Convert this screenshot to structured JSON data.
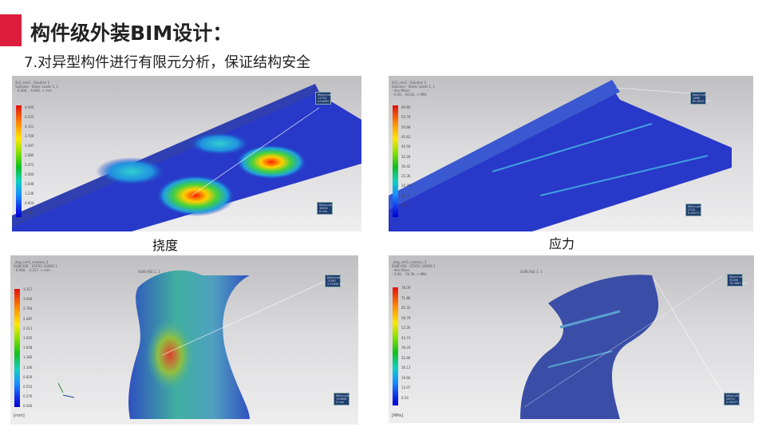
{
  "header": {
    "title": "构件级外装BIM设计：",
    "subtitle": "7.对异型构件进行有限元分析，保证结构安全",
    "accent_color": "#dc1e3c"
  },
  "captions": {
    "deflection": "挠度",
    "stress": "应力"
  },
  "panels": [
    {
      "header": "AL2_sim1 : Solution 1\nSubcase - Static Loads 1, 1\n- 0.000, - 4.945, < mm",
      "legend": [
        "4.945",
        "4.533",
        "4.121",
        "3.709",
        "3.297",
        "2.885",
        "2.472",
        "2.060",
        "1.648",
        "1.236",
        "0.824",
        "0.412"
      ],
      "max_box": "Maximum\n11754\n4.94492 mm",
      "min_box": "Minimum\n16452\n0 mm"
    },
    {
      "header": "AL2_sim1 : Solution 1\nSubcase - Static Loads 1, 1\n- Von Mises\n- 0.00, - 60.82, < MPa",
      "legend": [
        "60.82",
        "55.76",
        "50.68",
        "45.62",
        "40.56",
        "35.49",
        "30.42",
        "25.36",
        "20.29",
        "15.22",
        "10.15"
      ],
      "max_box": "Maximum\n1666\n60.8229 MPa",
      "min_box": "Minimum\n2745\n0.00271 MPa"
    },
    {
      "header": "_deg_sim1_solution_2\nSUBCASE - STATIC LOADS 1\n- 0.000, - 3.317, < mm",
      "subcase": "SUBCASE 1, 1",
      "legend": [
        "3.317",
        "3.040",
        "2.764",
        "2.487",
        "2.211",
        "1.935",
        "1.658",
        "1.382",
        "1.106",
        "0.829",
        "0.553",
        "0.276",
        "0.000"
      ],
      "unit": "[mm]",
      "max_box": "Maximum\n72087\n3.31656 mm",
      "min_box": "Minimum\n120808\n0 mm"
    },
    {
      "header": "_deg_sim1_solution_3\nSUBCASE - STATIC LOADS 1\n- Von Mises\n- 0.00, - 78.39, < MPa",
      "subcase": "SUBCASE 1, 1",
      "legend": [
        "78.39",
        "71.86",
        "65.32",
        "58.79",
        "52.26",
        "45.73",
        "39.20",
        "32.66",
        "26.13",
        "19.60",
        "13.07",
        "6.54"
      ],
      "unit": "[MPa]",
      "max_box": "Maximum\n35206\n78.3861 MPa",
      "min_box": "Minimum\n28712\n0.00437 MPa"
    }
  ]
}
